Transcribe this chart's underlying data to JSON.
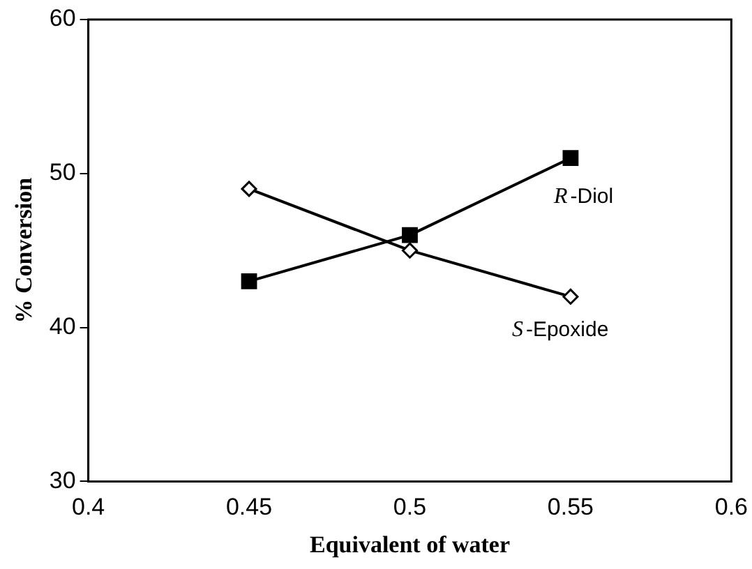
{
  "chart_data": {
    "type": "line",
    "xlabel": "Equivalent of water",
    "ylabel": "% Conversion",
    "x": [
      0.45,
      0.5,
      0.55
    ],
    "series": [
      {
        "name": "R-Diol",
        "color": "#000000",
        "marker": "square",
        "values": [
          43,
          46,
          51
        ]
      },
      {
        "name": "S-Epoxide",
        "color": "#000000",
        "marker": "diamond",
        "values": [
          49,
          45,
          42
        ]
      }
    ],
    "xlim": [
      0.4,
      0.6
    ],
    "xticks": [
      0.4,
      0.45,
      0.5,
      0.55,
      0.6
    ],
    "ylim": [
      30,
      60
    ],
    "yticks": [
      30,
      40,
      50,
      60
    ],
    "grid": false,
    "legend": false,
    "line_style": "solid"
  }
}
